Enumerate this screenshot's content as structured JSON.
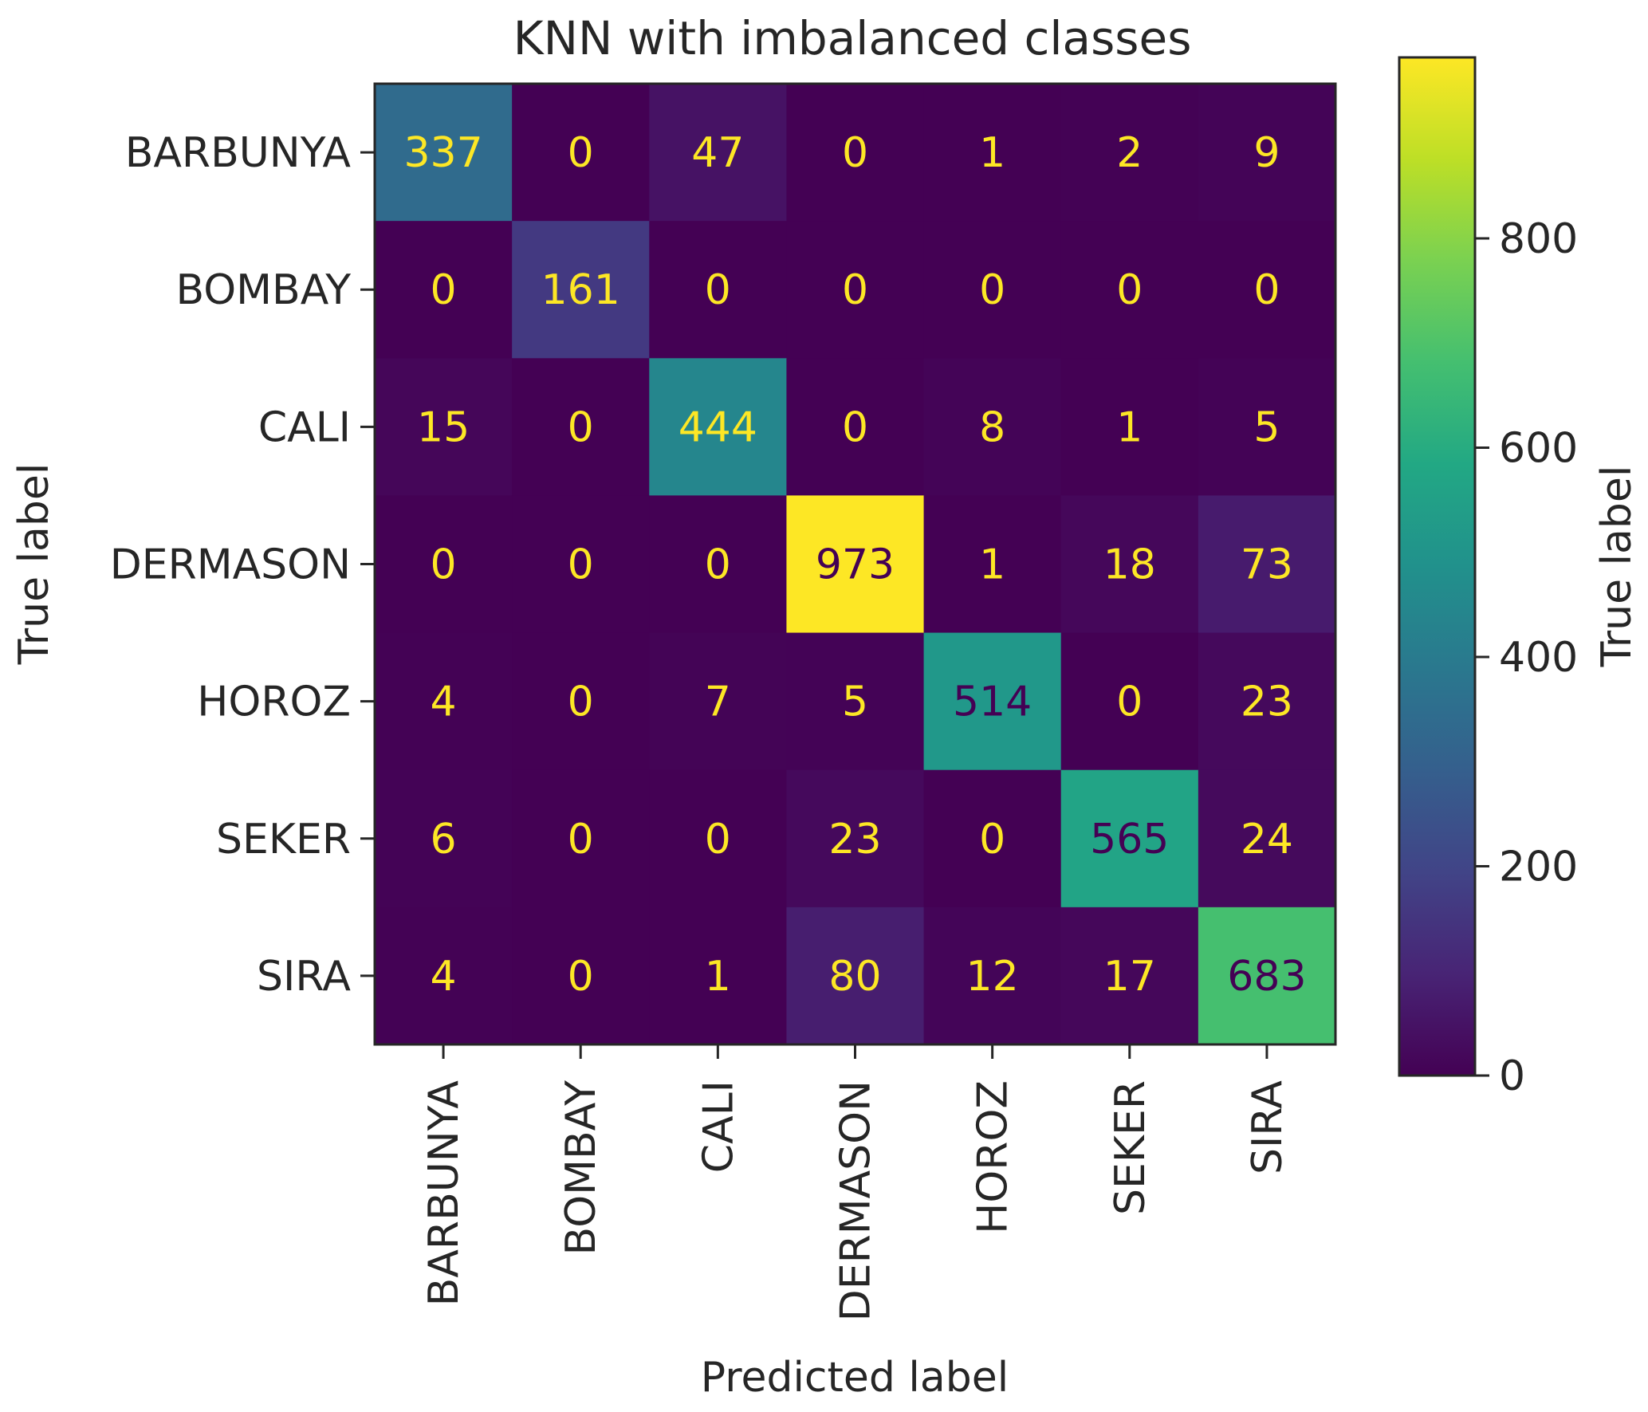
{
  "chart_data": {
    "type": "heatmap",
    "title": "KNN with imbalanced classes",
    "xlabel": "Predicted label",
    "ylabel": "True label",
    "colorbar_label": "True label",
    "colormap": "viridis",
    "categories_x": [
      "BARBUNYA",
      "BOMBAY",
      "CALI",
      "DERMASON",
      "HOROZ",
      "SEKER",
      "SIRA"
    ],
    "categories_y": [
      "BARBUNYA",
      "BOMBAY",
      "CALI",
      "DERMASON",
      "HOROZ",
      "SEKER",
      "SIRA"
    ],
    "values": [
      [
        337,
        0,
        47,
        0,
        1,
        2,
        9
      ],
      [
        0,
        161,
        0,
        0,
        0,
        0,
        0
      ],
      [
        15,
        0,
        444,
        0,
        8,
        1,
        5
      ],
      [
        0,
        0,
        0,
        973,
        1,
        18,
        73
      ],
      [
        4,
        0,
        7,
        5,
        514,
        0,
        23
      ],
      [
        6,
        0,
        0,
        23,
        0,
        565,
        24
      ],
      [
        4,
        0,
        1,
        80,
        12,
        17,
        683
      ]
    ],
    "color_range": [
      0,
      973
    ],
    "colorbar_ticks": [
      0,
      200,
      400,
      600,
      800
    ],
    "text_colors": {
      "on_dark": "#fde725",
      "on_light": "#440154"
    }
  }
}
